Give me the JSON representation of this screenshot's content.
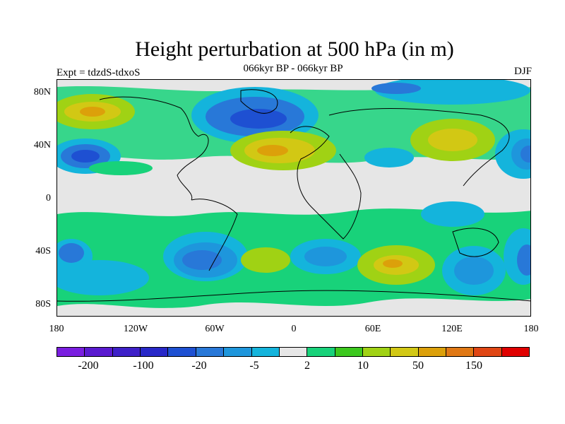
{
  "title": "Height perturbation at 500 hPa (in m)",
  "subtitle": "066kyr BP - 066kyr BP",
  "experiment_label": "Expt = tdzdS-tdxoS",
  "season_label": "DJF",
  "y_ticks": [
    "80N",
    "40N",
    "0",
    "40S",
    "80S"
  ],
  "x_ticks": [
    "180",
    "120W",
    "60W",
    "0",
    "60E",
    "120E",
    "180"
  ],
  "colorbar": {
    "colors": [
      "#7a1ee0",
      "#5a1ad0",
      "#3e20c8",
      "#2828c8",
      "#1e50d2",
      "#2878d8",
      "#1e96dc",
      "#14b4dc",
      "#e6e6e6",
      "#18d27a",
      "#3cc81e",
      "#a0d214",
      "#d2c814",
      "#dca00a",
      "#e07814",
      "#e04614",
      "#e00000"
    ],
    "tick_labels": [
      "-200",
      "-100",
      "-20",
      "-5",
      "2",
      "10",
      "50",
      "150"
    ]
  }
}
